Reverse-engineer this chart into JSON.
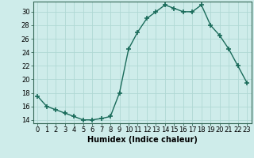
{
  "x": [
    0,
    1,
    2,
    3,
    4,
    5,
    6,
    7,
    8,
    9,
    10,
    11,
    12,
    13,
    14,
    15,
    16,
    17,
    18,
    19,
    20,
    21,
    22,
    23
  ],
  "y": [
    17.5,
    16.0,
    15.5,
    15.0,
    14.5,
    14.0,
    14.0,
    14.2,
    14.5,
    18.0,
    24.5,
    27.0,
    29.0,
    30.0,
    31.0,
    30.5,
    30.0,
    30.0,
    31.0,
    28.0,
    26.5,
    24.5,
    22.0,
    19.5
  ],
  "line_color": "#1a6b5a",
  "marker": "+",
  "marker_size": 4,
  "marker_lw": 1.2,
  "background_color": "#ceecea",
  "grid_color": "#b0d8d4",
  "xlabel": "Humidex (Indice chaleur)",
  "xlim": [
    -0.5,
    23.5
  ],
  "ylim": [
    13.5,
    31.5
  ],
  "yticks": [
    14,
    16,
    18,
    20,
    22,
    24,
    26,
    28,
    30
  ],
  "xticks": [
    0,
    1,
    2,
    3,
    4,
    5,
    6,
    7,
    8,
    9,
    10,
    11,
    12,
    13,
    14,
    15,
    16,
    17,
    18,
    19,
    20,
    21,
    22,
    23
  ],
  "xlabel_fontsize": 7,
  "tick_fontsize": 6,
  "line_width": 1.0
}
